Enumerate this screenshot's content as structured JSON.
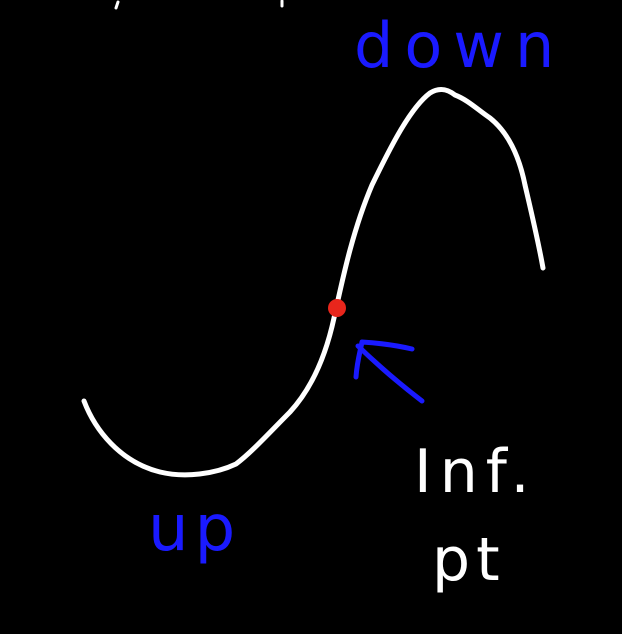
{
  "colors": {
    "background": "#000000",
    "curve": "#ffffff",
    "concavity_labels": "#1a1aff",
    "arrow": "#1a1aff",
    "inflection_point": "#e8261c",
    "annotation": "#ffffff"
  },
  "labels": {
    "concave_down": "down",
    "concave_up": "up",
    "inflection_line1": "Inf.",
    "inflection_line2": "pt"
  },
  "icons": {
    "inflection_marker": "dot",
    "pointer": "arrow-up-left-icon"
  }
}
